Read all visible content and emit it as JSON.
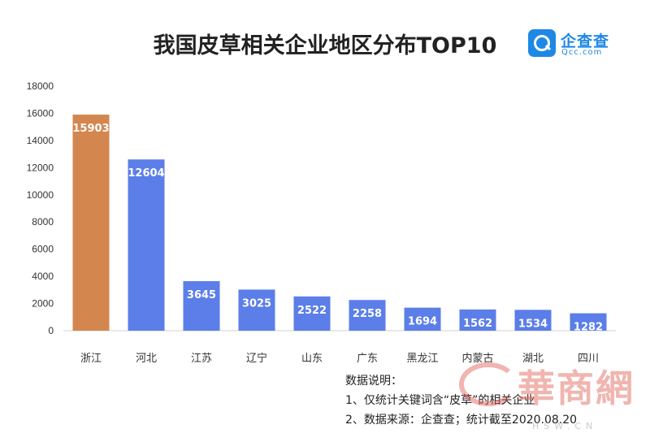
{
  "chart_data": {
    "type": "bar",
    "title": "我国皮草相关企业地区分布TOP10",
    "categories": [
      "浙江",
      "河北",
      "江苏",
      "辽宁",
      "山东",
      "广东",
      "黑龙江",
      "内蒙古",
      "湖北",
      "四川"
    ],
    "values": [
      15903,
      12604,
      3645,
      3025,
      2522,
      2258,
      1694,
      1562,
      1534,
      1282
    ],
    "bar_colors": [
      "#d4864f",
      "#5b7ee8",
      "#5b7ee8",
      "#5b7ee8",
      "#5b7ee8",
      "#5b7ee8",
      "#5b7ee8",
      "#5b7ee8",
      "#5b7ee8",
      "#5b7ee8"
    ],
    "ylim": [
      0,
      18000
    ],
    "yticks": [
      0,
      2000,
      4000,
      6000,
      8000,
      10000,
      12000,
      14000,
      16000,
      18000
    ],
    "xlabel": "",
    "ylabel": "",
    "grid": false
  },
  "logo": {
    "name": "企查查",
    "sub": "Qcc.com",
    "color": "#1e88e5"
  },
  "notes": {
    "heading": "数据说明：",
    "line1": "1、仅统计关键词含“皮草”的相关企业",
    "line2": "2、数据来源：企查查；统计截至2020.08.20"
  },
  "watermark": {
    "brand": "華商網",
    "url": "HSW.CN"
  }
}
